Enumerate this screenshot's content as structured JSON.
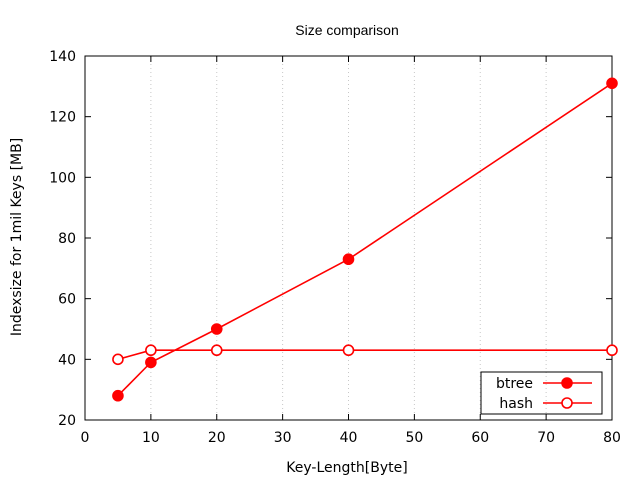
{
  "chart_data": {
    "type": "line",
    "title": "Size comparison",
    "xlabel": "Key-Length[Byte]",
    "ylabel": "Indexsize for 1mil Keys [MB]",
    "xlim": [
      0,
      80
    ],
    "ylim": [
      20,
      140
    ],
    "x_ticks": [
      0,
      10,
      20,
      30,
      40,
      50,
      60,
      70,
      80
    ],
    "y_ticks": [
      20,
      40,
      60,
      80,
      100,
      120,
      140
    ],
    "grid": "vertical dotted",
    "legend_position": "bottom-right",
    "series": [
      {
        "name": "btree",
        "marker": "filled-circle",
        "color": "#ff0000",
        "x": [
          5,
          10,
          20,
          40,
          80
        ],
        "y": [
          28,
          39,
          50,
          73,
          131
        ]
      },
      {
        "name": "hash",
        "marker": "open-circle",
        "color": "#ff0000",
        "x": [
          5,
          10,
          20,
          40,
          80
        ],
        "y": [
          40,
          43,
          43,
          43,
          43
        ]
      }
    ]
  }
}
